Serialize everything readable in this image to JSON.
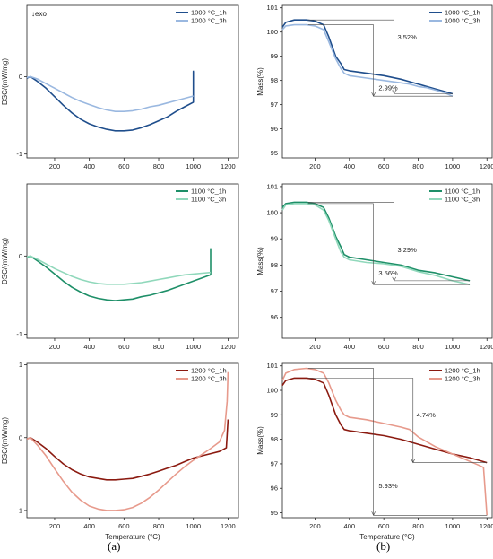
{
  "panel_labels": [
    "(a)",
    "(b)"
  ],
  "colors": {
    "dark_blue": "#1f4e8c",
    "light_blue": "#9ab8e0",
    "dark_green": "#1e8f68",
    "light_green": "#90d8bb",
    "dark_red": "#8b1a10",
    "light_red": "#e79a8c"
  },
  "chart_data": [
    {
      "type": "line",
      "panel": "a1",
      "xlabel": "",
      "ylabel": "DSC/(mW/mg)",
      "annotation": "↓exo",
      "xlim": [
        40,
        1260
      ],
      "ylim": [
        -1.05,
        0.92
      ],
      "xticks": [
        200,
        400,
        600,
        800,
        1000,
        1200
      ],
      "yticks": [
        -1,
        0
      ],
      "legend": "top-right",
      "series": [
        {
          "name": "1000 °C_1h",
          "color": "dark_blue",
          "x": [
            40,
            60,
            100,
            150,
            200,
            250,
            300,
            350,
            400,
            450,
            500,
            550,
            600,
            650,
            700,
            750,
            800,
            850,
            900,
            950,
            1000,
            1000,
            1003
          ],
          "y": [
            -0.02,
            0.0,
            -0.06,
            -0.15,
            -0.26,
            -0.37,
            -0.47,
            -0.55,
            -0.61,
            -0.65,
            -0.68,
            -0.7,
            -0.7,
            -0.69,
            -0.66,
            -0.62,
            -0.57,
            -0.52,
            -0.45,
            -0.39,
            -0.33,
            0.07,
            0.07
          ]
        },
        {
          "name": "1000 °C_3h",
          "color": "light_blue",
          "x": [
            40,
            60,
            100,
            150,
            200,
            250,
            300,
            350,
            400,
            450,
            500,
            550,
            600,
            650,
            700,
            750,
            800,
            850,
            900,
            950,
            1000
          ],
          "y": [
            -0.01,
            0.0,
            -0.03,
            -0.09,
            -0.15,
            -0.21,
            -0.27,
            -0.32,
            -0.36,
            -0.4,
            -0.43,
            -0.45,
            -0.45,
            -0.44,
            -0.42,
            -0.39,
            -0.37,
            -0.34,
            -0.31,
            -0.28,
            -0.25
          ]
        }
      ]
    },
    {
      "type": "line",
      "panel": "b1",
      "xlabel": "",
      "ylabel": "Mass(%)",
      "xlim": [
        10,
        1230
      ],
      "ylim": [
        94.8,
        101.1
      ],
      "xticks": [
        200,
        400,
        600,
        800,
        1000,
        1200
      ],
      "yticks": [
        95,
        96,
        97,
        98,
        99,
        100,
        101
      ],
      "legend": "top-right",
      "series": [
        {
          "name": "1000 °C_1h",
          "color": "dark_blue",
          "x": [
            10,
            30,
            80,
            150,
            200,
            250,
            280,
            320,
            350,
            370,
            400,
            500,
            600,
            700,
            750,
            800,
            850,
            900,
            950,
            1000
          ],
          "y": [
            100.2,
            100.4,
            100.5,
            100.5,
            100.45,
            100.3,
            99.8,
            99.0,
            98.7,
            98.45,
            98.4,
            98.3,
            98.2,
            98.05,
            97.95,
            97.85,
            97.75,
            97.65,
            97.55,
            97.45
          ]
        },
        {
          "name": "1000 °C_3h",
          "color": "light_blue",
          "x": [
            10,
            30,
            80,
            150,
            200,
            250,
            280,
            320,
            350,
            370,
            400,
            500,
            600,
            700,
            750,
            800,
            850,
            900,
            950,
            1000
          ],
          "y": [
            100.1,
            100.25,
            100.3,
            100.3,
            100.25,
            100.1,
            99.6,
            98.9,
            98.5,
            98.3,
            98.2,
            98.1,
            98.0,
            97.9,
            97.85,
            97.75,
            97.7,
            97.6,
            97.5,
            97.35
          ]
        }
      ],
      "annotations": [
        {
          "label": "3.52%",
          "x": 680,
          "y": 99.7
        },
        {
          "label": "2.99%",
          "x": 570,
          "y": 97.6
        }
      ]
    },
    {
      "type": "line",
      "panel": "a2",
      "xlabel": "",
      "ylabel": "DSC/(mW/mg)",
      "xlim": [
        40,
        1260
      ],
      "ylim": [
        -1.05,
        0.92
      ],
      "xticks": [
        200,
        400,
        600,
        800,
        1000,
        1200
      ],
      "yticks": [
        -1,
        0
      ],
      "legend": "top-right",
      "series": [
        {
          "name": "1100 °C_1h",
          "color": "dark_green",
          "x": [
            40,
            60,
            100,
            150,
            200,
            250,
            300,
            350,
            400,
            450,
            500,
            550,
            600,
            650,
            700,
            750,
            800,
            850,
            900,
            950,
            1000,
            1050,
            1100,
            1100
          ],
          "y": [
            -0.02,
            0.0,
            -0.06,
            -0.14,
            -0.23,
            -0.32,
            -0.4,
            -0.46,
            -0.51,
            -0.54,
            -0.56,
            -0.57,
            -0.56,
            -0.55,
            -0.52,
            -0.5,
            -0.47,
            -0.44,
            -0.4,
            -0.36,
            -0.32,
            -0.28,
            -0.24,
            0.1
          ]
        },
        {
          "name": "1100 °C_3h",
          "color": "light_green",
          "x": [
            40,
            60,
            100,
            150,
            200,
            250,
            300,
            350,
            400,
            450,
            500,
            550,
            600,
            650,
            700,
            750,
            800,
            850,
            900,
            950,
            1000,
            1050,
            1100
          ],
          "y": [
            -0.01,
            0.0,
            -0.04,
            -0.1,
            -0.16,
            -0.21,
            -0.26,
            -0.3,
            -0.33,
            -0.35,
            -0.36,
            -0.36,
            -0.36,
            -0.35,
            -0.34,
            -0.32,
            -0.3,
            -0.28,
            -0.26,
            -0.24,
            -0.23,
            -0.22,
            -0.21
          ]
        }
      ]
    },
    {
      "type": "line",
      "panel": "b2",
      "xlabel": "",
      "ylabel": "Mass(%)",
      "xlim": [
        10,
        1230
      ],
      "ylim": [
        95.2,
        101.1
      ],
      "xticks": [
        200,
        400,
        600,
        800,
        1000,
        1200
      ],
      "yticks": [
        96,
        97,
        98,
        99,
        100,
        101
      ],
      "legend": "top-right",
      "series": [
        {
          "name": "1100 °C_1h",
          "color": "dark_green",
          "x": [
            10,
            30,
            80,
            150,
            200,
            250,
            280,
            320,
            350,
            370,
            400,
            500,
            600,
            700,
            750,
            800,
            900,
            1000,
            1100
          ],
          "y": [
            100.2,
            100.35,
            100.4,
            100.4,
            100.35,
            100.2,
            99.8,
            99.1,
            98.7,
            98.4,
            98.3,
            98.2,
            98.1,
            98.0,
            97.9,
            97.8,
            97.7,
            97.55,
            97.4
          ]
        },
        {
          "name": "1100 °C_3h",
          "color": "light_green",
          "x": [
            10,
            30,
            80,
            150,
            200,
            250,
            280,
            320,
            350,
            370,
            400,
            500,
            600,
            700,
            750,
            800,
            900,
            1000,
            1100
          ],
          "y": [
            100.1,
            100.3,
            100.35,
            100.35,
            100.3,
            100.1,
            99.7,
            99.0,
            98.5,
            98.3,
            98.2,
            98.1,
            98.05,
            97.95,
            97.85,
            97.75,
            97.6,
            97.4,
            97.25
          ]
        }
      ],
      "annotations": [
        {
          "label": "3.29%",
          "x": 680,
          "y": 98.5
        },
        {
          "label": "3.56%",
          "x": 570,
          "y": 97.6
        }
      ]
    },
    {
      "type": "line",
      "panel": "a3",
      "xlabel": "Temperature (°C)",
      "ylabel": "DSC/(mW/mg)",
      "xlim": [
        40,
        1260
      ],
      "ylim": [
        -1.1,
        1.02
      ],
      "xticks": [
        200,
        400,
        600,
        800,
        1000,
        1200
      ],
      "yticks": [
        -1,
        0,
        1
      ],
      "legend": "top-right",
      "series": [
        {
          "name": "1200 °C_1h",
          "color": "dark_red",
          "x": [
            40,
            60,
            100,
            150,
            200,
            250,
            300,
            350,
            400,
            450,
            500,
            550,
            600,
            650,
            700,
            750,
            800,
            850,
            900,
            950,
            1000,
            1050,
            1100,
            1150,
            1190,
            1200
          ],
          "y": [
            -0.02,
            0.0,
            -0.06,
            -0.15,
            -0.26,
            -0.36,
            -0.44,
            -0.5,
            -0.54,
            -0.56,
            -0.58,
            -0.58,
            -0.57,
            -0.56,
            -0.53,
            -0.5,
            -0.46,
            -0.42,
            -0.38,
            -0.33,
            -0.28,
            -0.25,
            -0.22,
            -0.19,
            -0.14,
            0.25
          ]
        },
        {
          "name": "1200 °C_3h",
          "color": "light_red",
          "x": [
            40,
            60,
            100,
            150,
            200,
            250,
            300,
            350,
            400,
            450,
            500,
            550,
            600,
            650,
            700,
            750,
            800,
            850,
            900,
            950,
            1000,
            1050,
            1100,
            1150,
            1180,
            1195,
            1200
          ],
          "y": [
            -0.02,
            0.0,
            -0.1,
            -0.25,
            -0.43,
            -0.6,
            -0.75,
            -0.86,
            -0.94,
            -0.98,
            -1.0,
            -1.0,
            -0.99,
            -0.96,
            -0.9,
            -0.82,
            -0.72,
            -0.61,
            -0.5,
            -0.4,
            -0.31,
            -0.23,
            -0.15,
            -0.06,
            0.1,
            0.5,
            0.9
          ]
        }
      ]
    },
    {
      "type": "line",
      "panel": "b3",
      "xlabel": "Temperature (°C)",
      "ylabel": "Mass(%)",
      "xlim": [
        10,
        1230
      ],
      "ylim": [
        94.8,
        101.1
      ],
      "xticks": [
        200,
        400,
        600,
        800,
        1000,
        1200
      ],
      "yticks": [
        95,
        96,
        97,
        98,
        99,
        100,
        101
      ],
      "legend": "top-right",
      "series": [
        {
          "name": "1200 °C_1h",
          "color": "dark_red",
          "x": [
            10,
            30,
            80,
            150,
            200,
            250,
            280,
            320,
            350,
            370,
            400,
            500,
            600,
            700,
            750,
            800,
            900,
            1000,
            1100,
            1200
          ],
          "y": [
            100.2,
            100.4,
            100.5,
            100.5,
            100.45,
            100.3,
            99.8,
            99.0,
            98.6,
            98.4,
            98.35,
            98.25,
            98.15,
            98.0,
            97.9,
            97.8,
            97.6,
            97.4,
            97.25,
            97.05
          ]
        },
        {
          "name": "1200 °C_3h",
          "color": "light_red",
          "x": [
            10,
            30,
            80,
            150,
            200,
            250,
            280,
            320,
            350,
            370,
            400,
            500,
            600,
            700,
            750,
            800,
            900,
            1000,
            1100,
            1150,
            1180,
            1200
          ],
          "y": [
            100.4,
            100.7,
            100.85,
            100.9,
            100.85,
            100.7,
            100.3,
            99.6,
            99.2,
            99.0,
            98.9,
            98.8,
            98.65,
            98.5,
            98.4,
            98.1,
            97.7,
            97.4,
            97.1,
            96.95,
            96.85,
            94.9
          ]
        }
      ],
      "annotations": [
        {
          "label": "4.74%",
          "x": 790,
          "y": 98.9
        },
        {
          "label": "5.93%",
          "x": 570,
          "y": 96.0
        }
      ]
    }
  ]
}
